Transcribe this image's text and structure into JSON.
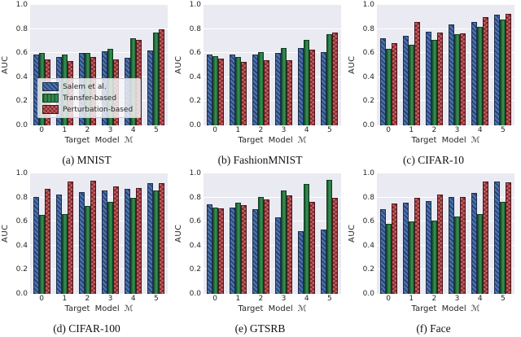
{
  "figure": {
    "background": "#ffffff",
    "plot_background": "#eaeaf2",
    "grid_color": "#ffffff",
    "series_styles": [
      {
        "name": "Salem et al.",
        "color": "#4c72b0",
        "hatch": "diagonal-stripes",
        "hatch_color": "#27406a"
      },
      {
        "name": "Transfer-based",
        "color": "#338a4e",
        "hatch": "vertical-stripes",
        "hatch_color": "#1c5a32"
      },
      {
        "name": "Perturbation-based",
        "color": "#c4605e",
        "hatch": "checker",
        "hatch_color": "#7f2a30"
      }
    ],
    "legend": {
      "position": "lower-left of subplot (a)",
      "entries": [
        "Salem et al.",
        "Transfer-based",
        "Perturbation-based"
      ]
    }
  },
  "chart_data": [
    {
      "type": "bar",
      "caption": "(a) MNIST",
      "xlabel": "Target Model ℳ",
      "ylabel": "AUC",
      "ylim": [
        0,
        1
      ],
      "yticks": [
        "0.0",
        "0.2",
        "0.4",
        "0.6",
        "0.8",
        "1.0"
      ],
      "categories": [
        "0",
        "1",
        "2",
        "3",
        "4",
        "5"
      ],
      "series": [
        {
          "name": "Salem et al.",
          "values": [
            0.59,
            0.57,
            0.6,
            0.615,
            0.56,
            0.62
          ]
        },
        {
          "name": "Transfer-based",
          "values": [
            0.6,
            0.585,
            0.6,
            0.635,
            0.72,
            0.77
          ]
        },
        {
          "name": "Perturbation-based",
          "values": [
            0.55,
            0.535,
            0.565,
            0.55,
            0.71,
            0.8
          ]
        }
      ],
      "show_legend": true,
      "grid": true,
      "legend_position": "lower left"
    },
    {
      "type": "bar",
      "caption": "(b) FashionMNIST",
      "xlabel": "Target Model ℳ",
      "ylabel": "AUC",
      "ylim": [
        0,
        1
      ],
      "yticks": [
        "0.0",
        "0.2",
        "0.4",
        "0.6",
        "0.8",
        "1.0"
      ],
      "categories": [
        "0",
        "1",
        "2",
        "3",
        "4",
        "5"
      ],
      "series": [
        {
          "name": "Salem et al.",
          "values": [
            0.59,
            0.585,
            0.585,
            0.6,
            0.645,
            0.605
          ]
        },
        {
          "name": "Transfer-based",
          "values": [
            0.575,
            0.57,
            0.61,
            0.64,
            0.71,
            0.76
          ]
        },
        {
          "name": "Perturbation-based",
          "values": [
            0.555,
            0.53,
            0.54,
            0.54,
            0.63,
            0.77
          ]
        }
      ],
      "show_legend": false,
      "grid": true
    },
    {
      "type": "bar",
      "caption": "(c) CIFAR-10",
      "xlabel": "Target Model ℳ",
      "ylabel": "AUC",
      "ylim": [
        0,
        1
      ],
      "yticks": [
        "0.0",
        "0.2",
        "0.4",
        "0.6",
        "0.8",
        "1.0"
      ],
      "categories": [
        "0",
        "1",
        "2",
        "3",
        "4",
        "5"
      ],
      "series": [
        {
          "name": "Salem et al.",
          "values": [
            0.72,
            0.74,
            0.775,
            0.84,
            0.855,
            0.92
          ]
        },
        {
          "name": "Transfer-based",
          "values": [
            0.635,
            0.67,
            0.71,
            0.76,
            0.82,
            0.88
          ]
        },
        {
          "name": "Perturbation-based",
          "values": [
            0.685,
            0.855,
            0.77,
            0.765,
            0.9,
            0.925
          ]
        }
      ],
      "show_legend": false,
      "grid": true
    },
    {
      "type": "bar",
      "caption": "(d) CIFAR-100",
      "xlabel": "Target Model ℳ",
      "ylabel": "AUC",
      "ylim": [
        0,
        1
      ],
      "yticks": [
        "0.0",
        "0.2",
        "0.4",
        "0.6",
        "0.8",
        "1.0"
      ],
      "categories": [
        "0",
        "1",
        "2",
        "3",
        "4",
        "5"
      ],
      "series": [
        {
          "name": "Salem et al.",
          "values": [
            0.805,
            0.825,
            0.845,
            0.86,
            0.875,
            0.92
          ]
        },
        {
          "name": "Transfer-based",
          "values": [
            0.655,
            0.66,
            0.73,
            0.765,
            0.795,
            0.855
          ]
        },
        {
          "name": "Perturbation-based",
          "values": [
            0.87,
            0.93,
            0.94,
            0.895,
            0.88,
            0.92
          ]
        }
      ],
      "show_legend": false,
      "grid": true
    },
    {
      "type": "bar",
      "caption": "(e) GTSRB",
      "xlabel": "Target Model ℳ",
      "ylabel": "AUC",
      "ylim": [
        0,
        1
      ],
      "yticks": [
        "0.0",
        "0.2",
        "0.4",
        "0.6",
        "0.8",
        "1.0"
      ],
      "categories": [
        "0",
        "1",
        "2",
        "3",
        "4",
        "5"
      ],
      "series": [
        {
          "name": "Salem et al.",
          "values": [
            0.745,
            0.715,
            0.7,
            0.635,
            0.52,
            0.535
          ]
        },
        {
          "name": "Transfer-based",
          "values": [
            0.715,
            0.76,
            0.805,
            0.855,
            0.91,
            0.945
          ]
        },
        {
          "name": "Perturbation-based",
          "values": [
            0.71,
            0.735,
            0.785,
            0.815,
            0.765,
            0.795
          ]
        }
      ],
      "show_legend": false,
      "grid": true
    },
    {
      "type": "bar",
      "caption": "(f) Face",
      "xlabel": "Target Model ℳ",
      "ylabel": "AUC",
      "ylim": [
        0,
        1
      ],
      "yticks": [
        "0.0",
        "0.2",
        "0.4",
        "0.6",
        "0.8",
        "1.0"
      ],
      "categories": [
        "0",
        "1",
        "2",
        "3",
        "4",
        "5"
      ],
      "series": [
        {
          "name": "Salem et al.",
          "values": [
            0.7,
            0.76,
            0.77,
            0.805,
            0.84,
            0.93
          ]
        },
        {
          "name": "Transfer-based",
          "values": [
            0.58,
            0.6,
            0.605,
            0.64,
            0.66,
            0.765
          ]
        },
        {
          "name": "Perturbation-based",
          "values": [
            0.75,
            0.795,
            0.825,
            0.805,
            0.935,
            0.925
          ]
        }
      ],
      "show_legend": false,
      "grid": true
    }
  ]
}
